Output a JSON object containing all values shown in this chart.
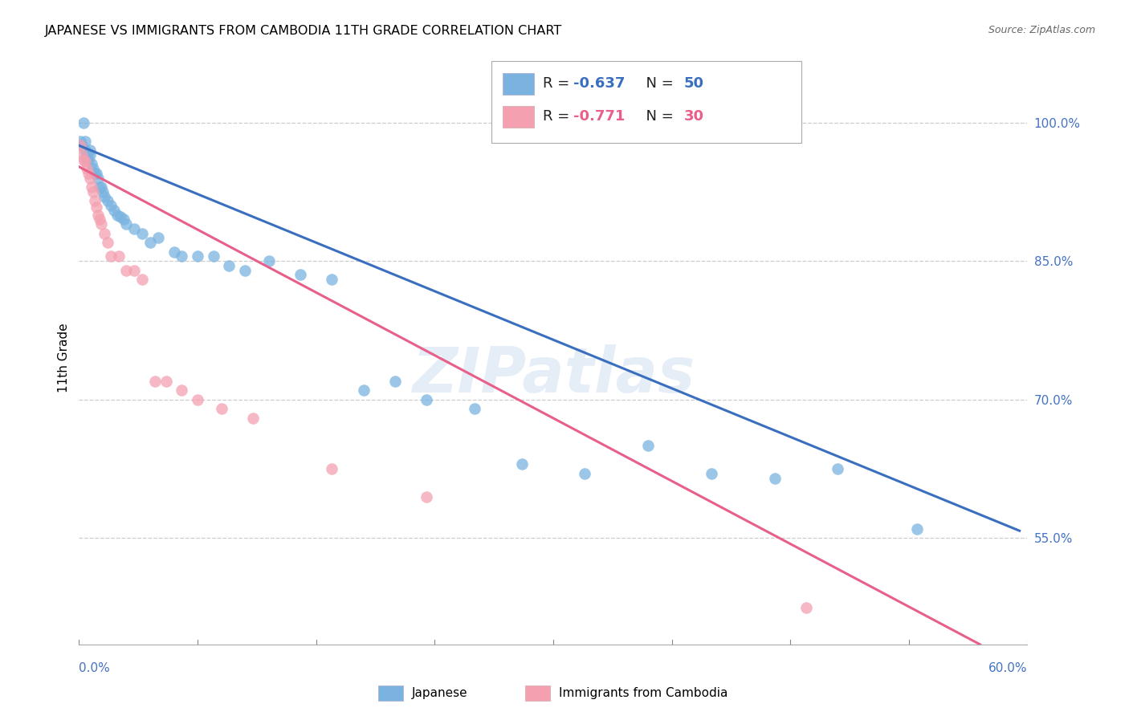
{
  "title": "JAPANESE VS IMMIGRANTS FROM CAMBODIA 11TH GRADE CORRELATION CHART",
  "source": "Source: ZipAtlas.com",
  "ylabel": "11th Grade",
  "ylabel_right_labels": [
    "100.0%",
    "85.0%",
    "70.0%",
    "55.0%"
  ],
  "ylabel_right_values": [
    1.0,
    0.85,
    0.7,
    0.55
  ],
  "x_min": 0.0,
  "x_max": 0.6,
  "y_min": 0.435,
  "y_max": 1.055,
  "blue_R": "-0.637",
  "blue_N": "50",
  "pink_R": "-0.771",
  "pink_N": "30",
  "blue_color": "#7ab3e0",
  "pink_color": "#f4a0b0",
  "blue_line_color": "#3a6fbf",
  "pink_line_color": "#e8608a",
  "watermark": "ZIPatlas",
  "blue_scatter_x": [
    0.001,
    0.002,
    0.003,
    0.004,
    0.004,
    0.005,
    0.005,
    0.006,
    0.007,
    0.007,
    0.008,
    0.009,
    0.01,
    0.011,
    0.012,
    0.013,
    0.014,
    0.015,
    0.016,
    0.018,
    0.02,
    0.022,
    0.024,
    0.026,
    0.028,
    0.03,
    0.035,
    0.04,
    0.045,
    0.05,
    0.06,
    0.065,
    0.075,
    0.085,
    0.095,
    0.105,
    0.12,
    0.14,
    0.16,
    0.18,
    0.2,
    0.22,
    0.25,
    0.28,
    0.32,
    0.36,
    0.4,
    0.44,
    0.48,
    0.53
  ],
  "blue_scatter_y": [
    0.98,
    0.975,
    1.0,
    0.98,
    0.97,
    0.965,
    0.96,
    0.96,
    0.97,
    0.965,
    0.955,
    0.95,
    0.945,
    0.945,
    0.94,
    0.93,
    0.93,
    0.925,
    0.92,
    0.915,
    0.91,
    0.905,
    0.9,
    0.898,
    0.895,
    0.89,
    0.885,
    0.88,
    0.87,
    0.875,
    0.86,
    0.855,
    0.855,
    0.855,
    0.845,
    0.84,
    0.85,
    0.835,
    0.83,
    0.71,
    0.72,
    0.7,
    0.69,
    0.63,
    0.62,
    0.65,
    0.62,
    0.615,
    0.625,
    0.56
  ],
  "pink_scatter_x": [
    0.001,
    0.002,
    0.003,
    0.004,
    0.005,
    0.006,
    0.007,
    0.008,
    0.009,
    0.01,
    0.011,
    0.012,
    0.013,
    0.014,
    0.016,
    0.018,
    0.02,
    0.025,
    0.03,
    0.035,
    0.04,
    0.048,
    0.055,
    0.065,
    0.075,
    0.09,
    0.11,
    0.16,
    0.22,
    0.46
  ],
  "pink_scatter_y": [
    0.975,
    0.965,
    0.96,
    0.958,
    0.95,
    0.945,
    0.94,
    0.93,
    0.925,
    0.915,
    0.908,
    0.9,
    0.895,
    0.89,
    0.88,
    0.87,
    0.855,
    0.855,
    0.84,
    0.84,
    0.83,
    0.72,
    0.72,
    0.71,
    0.7,
    0.69,
    0.68,
    0.625,
    0.595,
    0.475
  ],
  "blue_line_x0": 0.0,
  "blue_line_x1": 0.595,
  "blue_line_y0": 0.975,
  "blue_line_y1": 0.558,
  "pink_line_x0": 0.0,
  "pink_line_x1": 0.57,
  "pink_line_y0": 0.952,
  "pink_line_y1": 0.435
}
